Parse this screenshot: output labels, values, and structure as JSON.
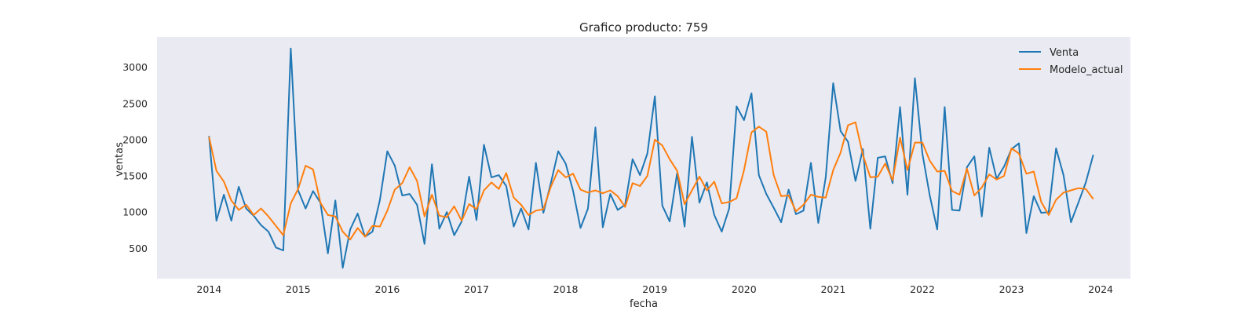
{
  "chart_data": {
    "type": "line",
    "title": "Grafico producto: 759",
    "xlabel": "fecha",
    "ylabel": "ventas",
    "x_ticks": [
      "2014",
      "2015",
      "2016",
      "2017",
      "2018",
      "2019",
      "2020",
      "2021",
      "2022",
      "2023",
      "2024"
    ],
    "y_ticks": [
      "500",
      "1000",
      "1500",
      "2000",
      "2500",
      "3000"
    ],
    "xlim": [
      "2013-06",
      "2024-05"
    ],
    "ylim": [
      80,
      3420
    ],
    "grid": false,
    "legend": "top-right",
    "x": [
      "2014-01",
      "2014-02",
      "2014-03",
      "2014-04",
      "2014-05",
      "2014-06",
      "2014-07",
      "2014-08",
      "2014-09",
      "2014-10",
      "2014-11",
      "2014-12",
      "2015-01",
      "2015-02",
      "2015-03",
      "2015-04",
      "2015-05",
      "2015-06",
      "2015-07",
      "2015-08",
      "2015-09",
      "2015-10",
      "2015-11",
      "2015-12",
      "2016-01",
      "2016-02",
      "2016-03",
      "2016-04",
      "2016-05",
      "2016-06",
      "2016-07",
      "2016-08",
      "2016-09",
      "2016-10",
      "2016-11",
      "2016-12",
      "2017-01",
      "2017-02",
      "2017-03",
      "2017-04",
      "2017-05",
      "2017-06",
      "2017-07",
      "2017-08",
      "2017-09",
      "2017-10",
      "2017-11",
      "2017-12",
      "2018-01",
      "2018-02",
      "2018-03",
      "2018-04",
      "2018-05",
      "2018-06",
      "2018-07",
      "2018-08",
      "2018-09",
      "2018-10",
      "2018-11",
      "2018-12",
      "2019-01",
      "2019-02",
      "2019-03",
      "2019-04",
      "2019-05",
      "2019-06",
      "2019-07",
      "2019-08",
      "2019-09",
      "2019-10",
      "2019-11",
      "2019-12",
      "2020-01",
      "2020-02",
      "2020-03",
      "2020-04",
      "2020-05",
      "2020-06",
      "2020-07",
      "2020-08",
      "2020-09",
      "2020-10",
      "2020-11",
      "2020-12",
      "2021-01",
      "2021-02",
      "2021-03",
      "2021-04",
      "2021-05",
      "2021-06",
      "2021-07",
      "2021-08",
      "2021-09",
      "2021-10",
      "2021-11",
      "2021-12",
      "2022-01",
      "2022-02",
      "2022-03",
      "2022-04",
      "2022-05",
      "2022-06",
      "2022-07",
      "2022-08",
      "2022-09",
      "2022-10",
      "2022-11",
      "2022-12",
      "2023-01",
      "2023-02",
      "2023-03",
      "2023-04",
      "2023-05",
      "2023-06",
      "2023-07",
      "2023-08",
      "2023-09",
      "2023-10",
      "2023-11",
      "2023-12"
    ],
    "series": [
      {
        "name": "Venta",
        "color": "#1f77b4",
        "values": [
          2050,
          880,
          1240,
          880,
          1350,
          1050,
          950,
          820,
          730,
          510,
          470,
          3260,
          1300,
          1050,
          1290,
          1130,
          430,
          1160,
          230,
          760,
          980,
          660,
          730,
          1170,
          1840,
          1640,
          1230,
          1250,
          1100,
          560,
          1660,
          770,
          1000,
          680,
          870,
          1490,
          890,
          1930,
          1480,
          1510,
          1360,
          800,
          1050,
          760,
          1680,
          990,
          1400,
          1840,
          1670,
          1290,
          780,
          1050,
          2170,
          790,
          1250,
          1030,
          1100,
          1730,
          1510,
          1810,
          2600,
          1090,
          870,
          1540,
          800,
          2040,
          1130,
          1410,
          960,
          730,
          1050,
          2460,
          2270,
          2640,
          1510,
          1250,
          1060,
          860,
          1310,
          970,
          1020,
          1680,
          850,
          1480,
          2780,
          2120,
          1970,
          1430,
          1870,
          770,
          1750,
          1770,
          1400,
          2450,
          1240,
          2850,
          1810,
          1230,
          760,
          2450,
          1030,
          1020,
          1620,
          1770,
          940,
          1890,
          1460,
          1630,
          1870,
          1950,
          710,
          1220,
          990,
          1000,
          1880,
          1510,
          860,
          1130,
          1410,
          1790
        ]
      },
      {
        "name": "Modelo_actual",
        "color": "#ff7f0e",
        "values": [
          2040,
          1570,
          1420,
          1160,
          1030,
          1100,
          960,
          1050,
          940,
          810,
          680,
          1120,
          1320,
          1640,
          1590,
          1130,
          960,
          940,
          730,
          620,
          780,
          660,
          810,
          800,
          1020,
          1310,
          1400,
          1620,
          1430,
          940,
          1240,
          950,
          930,
          1080,
          880,
          1110,
          1040,
          1300,
          1410,
          1320,
          1540,
          1200,
          1100,
          960,
          1020,
          1040,
          1350,
          1580,
          1480,
          1530,
          1310,
          1270,
          1300,
          1260,
          1300,
          1220,
          1070,
          1400,
          1360,
          1500,
          2000,
          1920,
          1730,
          1570,
          1110,
          1300,
          1490,
          1300,
          1420,
          1120,
          1140,
          1190,
          1580,
          2100,
          2180,
          2110,
          1510,
          1220,
          1230,
          1010,
          1100,
          1240,
          1210,
          1200,
          1580,
          1820,
          2200,
          2240,
          1790,
          1480,
          1490,
          1670,
          1440,
          2030,
          1580,
          1960,
          1960,
          1710,
          1560,
          1570,
          1290,
          1240,
          1600,
          1230,
          1340,
          1520,
          1450,
          1500,
          1880,
          1810,
          1530,
          1560,
          1140,
          960,
          1170,
          1270,
          1300,
          1330,
          1320,
          1180
        ]
      }
    ]
  }
}
